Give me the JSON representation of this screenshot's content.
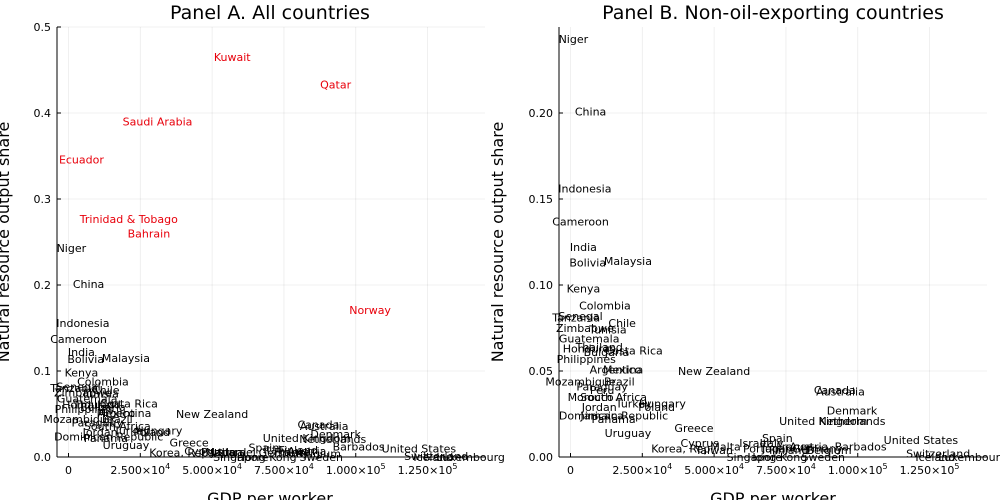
{
  "colors": {
    "oil": "#e8000b",
    "other": "#000000",
    "background": "#ffffff"
  },
  "chart_data": [
    {
      "type": "scatter",
      "title": "Panel A. All countries",
      "xlabel": "GDP per worker",
      "ylabel": "Natural resource output share",
      "xlim": [
        -4000,
        145000
      ],
      "ylim": [
        0,
        0.5
      ],
      "xticks": [
        0,
        25000,
        50000,
        75000,
        100000,
        125000
      ],
      "xtick_labels": [
        {
          "mantissa": "0",
          "exp": ""
        },
        {
          "mantissa": "2.500×10",
          "exp": "4"
        },
        {
          "mantissa": "5.000×10",
          "exp": "4"
        },
        {
          "mantissa": "7.500×10",
          "exp": "4"
        },
        {
          "mantissa": "1.000×10",
          "exp": "5"
        },
        {
          "mantissa": "1.250×10",
          "exp": "5"
        }
      ],
      "yticks": [
        0,
        0.1,
        0.2,
        0.3,
        0.4,
        0.5
      ],
      "ytick_labels": [
        "0.0",
        "0.1",
        "0.2",
        "0.3",
        "0.4",
        "0.5"
      ],
      "grid": true,
      "legend": "none",
      "points": [
        {
          "label": "Kuwait",
          "x": 57000,
          "y": 0.465,
          "group": "oil"
        },
        {
          "label": "Qatar",
          "x": 93000,
          "y": 0.433,
          "group": "oil"
        },
        {
          "label": "Saudi Arabia",
          "x": 31000,
          "y": 0.39,
          "group": "oil"
        },
        {
          "label": "Ecuador",
          "x": 4500,
          "y": 0.346,
          "group": "oil"
        },
        {
          "label": "Trinidad & Tobago",
          "x": 21000,
          "y": 0.277,
          "group": "oil"
        },
        {
          "label": "Bahrain",
          "x": 28000,
          "y": 0.26,
          "group": "oil"
        },
        {
          "label": "Norway",
          "x": 105000,
          "y": 0.171,
          "group": "oil"
        },
        {
          "label": "Niger",
          "x": 1000,
          "y": 0.243,
          "group": "other"
        },
        {
          "label": "China",
          "x": 7000,
          "y": 0.201,
          "group": "other"
        },
        {
          "label": "Indonesia",
          "x": 5000,
          "y": 0.156,
          "group": "other"
        },
        {
          "label": "Cameroon",
          "x": 3500,
          "y": 0.137,
          "group": "other"
        },
        {
          "label": "India",
          "x": 4500,
          "y": 0.122,
          "group": "other"
        },
        {
          "label": "Bolivia",
          "x": 6000,
          "y": 0.114,
          "group": "other"
        },
        {
          "label": "Malaysia",
          "x": 20000,
          "y": 0.115,
          "group": "other"
        },
        {
          "label": "Kenya",
          "x": 4500,
          "y": 0.098,
          "group": "other"
        },
        {
          "label": "Colombia",
          "x": 12000,
          "y": 0.088,
          "group": "other"
        },
        {
          "label": "Chile",
          "x": 13000,
          "y": 0.078,
          "group": "other"
        },
        {
          "label": "Senegal",
          "x": 3500,
          "y": 0.082,
          "group": "other"
        },
        {
          "label": "Tanzania",
          "x": 2000,
          "y": 0.08,
          "group": "other"
        },
        {
          "label": "Zimbabwe",
          "x": 5000,
          "y": 0.075,
          "group": "other"
        },
        {
          "label": "Tunisia",
          "x": 11000,
          "y": 0.074,
          "group": "other"
        },
        {
          "label": "Guatemala",
          "x": 6500,
          "y": 0.068,
          "group": "other"
        },
        {
          "label": "Honduras",
          "x": 7000,
          "y": 0.061,
          "group": "other"
        },
        {
          "label": "Costa Rica",
          "x": 21000,
          "y": 0.062,
          "group": "other"
        },
        {
          "label": "Thailand",
          "x": 10000,
          "y": 0.061,
          "group": "other"
        },
        {
          "label": "Bulgaria",
          "x": 12000,
          "y": 0.058,
          "group": "other"
        },
        {
          "label": "Philippines",
          "x": 5500,
          "y": 0.056,
          "group": "other"
        },
        {
          "label": "Mexico",
          "x": 16500,
          "y": 0.051,
          "group": "other"
        },
        {
          "label": "Argentina",
          "x": 19500,
          "y": 0.051,
          "group": "other"
        },
        {
          "label": "New Zealand",
          "x": 50000,
          "y": 0.05,
          "group": "other"
        },
        {
          "label": "Mozambique",
          "x": 3500,
          "y": 0.044,
          "group": "other"
        },
        {
          "label": "Brazil",
          "x": 17000,
          "y": 0.044,
          "group": "other"
        },
        {
          "label": "Paraguay",
          "x": 10000,
          "y": 0.04,
          "group": "other"
        },
        {
          "label": "South Africa",
          "x": 17000,
          "y": 0.036,
          "group": "other"
        },
        {
          "label": "Turkey",
          "x": 22000,
          "y": 0.031,
          "group": "other"
        },
        {
          "label": "Hungary",
          "x": 31500,
          "y": 0.031,
          "group": "other"
        },
        {
          "label": "Poland",
          "x": 29000,
          "y": 0.029,
          "group": "other"
        },
        {
          "label": "Jordan",
          "x": 11000,
          "y": 0.029,
          "group": "other"
        },
        {
          "label": "Dominican Republic",
          "x": 14000,
          "y": 0.024,
          "group": "other"
        },
        {
          "label": "Panama",
          "x": 13000,
          "y": 0.022,
          "group": "other"
        },
        {
          "label": "Uruguay",
          "x": 20000,
          "y": 0.014,
          "group": "other"
        },
        {
          "label": "Greece",
          "x": 42000,
          "y": 0.017,
          "group": "other"
        },
        {
          "label": "Korea, Rep.",
          "x": 39000,
          "y": 0.005,
          "group": "other"
        },
        {
          "label": "Cyprus",
          "x": 47000,
          "y": 0.007,
          "group": "other"
        },
        {
          "label": "Malta",
          "x": 53000,
          "y": 0.006,
          "group": "other"
        },
        {
          "label": "Israel",
          "x": 60000,
          "y": 0.006,
          "group": "other"
        },
        {
          "label": "Japan",
          "x": 55000,
          "y": 0.006,
          "group": "other"
        },
        {
          "label": "Portugal",
          "x": 54000,
          "y": 0.006,
          "group": "other"
        },
        {
          "label": "Spain",
          "x": 68000,
          "y": 0.011,
          "group": "other"
        },
        {
          "label": "Italy",
          "x": 72000,
          "y": 0.009,
          "group": "other"
        },
        {
          "label": "France",
          "x": 78000,
          "y": 0.006,
          "group": "other"
        },
        {
          "label": "Finland",
          "x": 80000,
          "y": 0.008,
          "group": "other"
        },
        {
          "label": "Austria",
          "x": 83000,
          "y": 0.007,
          "group": "other"
        },
        {
          "label": "Germany",
          "x": 75000,
          "y": 0.005,
          "group": "other"
        },
        {
          "label": "Singapore",
          "x": 60000,
          "y": 0.0,
          "group": "other"
        },
        {
          "label": "Hong Kong",
          "x": 69000,
          "y": 0.0,
          "group": "other"
        },
        {
          "label": "Sweden",
          "x": 88000,
          "y": 0.0,
          "group": "other"
        },
        {
          "label": "Belgium",
          "x": 87000,
          "y": 0.004,
          "group": "other"
        },
        {
          "label": "Barbados",
          "x": 101000,
          "y": 0.012,
          "group": "other"
        },
        {
          "label": "Canada",
          "x": 87000,
          "y": 0.038,
          "group": "other"
        },
        {
          "label": "Australia",
          "x": 89000,
          "y": 0.036,
          "group": "other"
        },
        {
          "label": "Denmark",
          "x": 93000,
          "y": 0.027,
          "group": "other"
        },
        {
          "label": "United Kingdom",
          "x": 83000,
          "y": 0.022,
          "group": "other"
        },
        {
          "label": "Netherlands",
          "x": 92000,
          "y": 0.021,
          "group": "other"
        },
        {
          "label": "United States",
          "x": 122000,
          "y": 0.01,
          "group": "other"
        },
        {
          "label": "Iceland",
          "x": 127000,
          "y": 0.0,
          "group": "other"
        },
        {
          "label": "Switzerland",
          "x": 128000,
          "y": 0.001,
          "group": "other"
        },
        {
          "label": "Luxembourg",
          "x": 140000,
          "y": 0.0,
          "group": "other"
        }
      ]
    },
    {
      "type": "scatter",
      "title": "Panel B. Non-oil-exporting countries",
      "xlabel": "GDP per worker",
      "ylabel": "Natural resource output share",
      "xlim": [
        -4000,
        145000
      ],
      "ylim": [
        0,
        0.25
      ],
      "xticks": [
        0,
        25000,
        50000,
        75000,
        100000,
        125000
      ],
      "xtick_labels": [
        {
          "mantissa": "0",
          "exp": ""
        },
        {
          "mantissa": "2.500×10",
          "exp": "4"
        },
        {
          "mantissa": "5.000×10",
          "exp": "4"
        },
        {
          "mantissa": "7.500×10",
          "exp": "4"
        },
        {
          "mantissa": "1.000×10",
          "exp": "5"
        },
        {
          "mantissa": "1.250×10",
          "exp": "5"
        }
      ],
      "yticks": [
        0,
        0.05,
        0.1,
        0.15,
        0.2
      ],
      "ytick_labels": [
        "0.00",
        "0.05",
        "0.10",
        "0.15",
        "0.20"
      ],
      "grid": true,
      "legend": "none",
      "points": [
        {
          "label": "Niger",
          "x": 1000,
          "y": 0.243,
          "group": "other"
        },
        {
          "label": "China",
          "x": 7000,
          "y": 0.201,
          "group": "other"
        },
        {
          "label": "Indonesia",
          "x": 5000,
          "y": 0.156,
          "group": "other"
        },
        {
          "label": "Cameroon",
          "x": 3500,
          "y": 0.137,
          "group": "other"
        },
        {
          "label": "India",
          "x": 4500,
          "y": 0.122,
          "group": "other"
        },
        {
          "label": "Bolivia",
          "x": 6000,
          "y": 0.113,
          "group": "other"
        },
        {
          "label": "Malaysia",
          "x": 20000,
          "y": 0.114,
          "group": "other"
        },
        {
          "label": "Kenya",
          "x": 4500,
          "y": 0.098,
          "group": "other"
        },
        {
          "label": "Colombia",
          "x": 12000,
          "y": 0.088,
          "group": "other"
        },
        {
          "label": "Senegal",
          "x": 3500,
          "y": 0.082,
          "group": "other"
        },
        {
          "label": "Tanzania",
          "x": 2000,
          "y": 0.081,
          "group": "other"
        },
        {
          "label": "Chile",
          "x": 18000,
          "y": 0.078,
          "group": "other"
        },
        {
          "label": "Zimbabwe",
          "x": 5000,
          "y": 0.075,
          "group": "other"
        },
        {
          "label": "Tunisia",
          "x": 13000,
          "y": 0.074,
          "group": "other"
        },
        {
          "label": "Guatemala",
          "x": 6500,
          "y": 0.069,
          "group": "other"
        },
        {
          "label": "Honduras",
          "x": 6500,
          "y": 0.063,
          "group": "other"
        },
        {
          "label": "Thailand",
          "x": 10000,
          "y": 0.064,
          "group": "other"
        },
        {
          "label": "Costa Rica",
          "x": 22000,
          "y": 0.062,
          "group": "other"
        },
        {
          "label": "Bulgaria",
          "x": 12500,
          "y": 0.061,
          "group": "other"
        },
        {
          "label": "Philippines",
          "x": 5500,
          "y": 0.057,
          "group": "other"
        },
        {
          "label": "Argentina",
          "x": 16000,
          "y": 0.051,
          "group": "other"
        },
        {
          "label": "Mexico",
          "x": 18000,
          "y": 0.051,
          "group": "other"
        },
        {
          "label": "New Zealand",
          "x": 50000,
          "y": 0.05,
          "group": "other"
        },
        {
          "label": "Mozambique",
          "x": 3500,
          "y": 0.044,
          "group": "other"
        },
        {
          "label": "Brazil",
          "x": 17000,
          "y": 0.044,
          "group": "other"
        },
        {
          "label": "Paraguay",
          "x": 11000,
          "y": 0.041,
          "group": "other"
        },
        {
          "label": "Peru",
          "x": 11000,
          "y": 0.039,
          "group": "other"
        },
        {
          "label": "Morocco",
          "x": 7000,
          "y": 0.035,
          "group": "other"
        },
        {
          "label": "South Africa",
          "x": 15000,
          "y": 0.035,
          "group": "other"
        },
        {
          "label": "Turkey",
          "x": 22000,
          "y": 0.031,
          "group": "other"
        },
        {
          "label": "Hungary",
          "x": 32000,
          "y": 0.031,
          "group": "other"
        },
        {
          "label": "Poland",
          "x": 30000,
          "y": 0.029,
          "group": "other"
        },
        {
          "label": "Jordan",
          "x": 10000,
          "y": 0.029,
          "group": "other"
        },
        {
          "label": "Dominican Republic",
          "x": 15000,
          "y": 0.024,
          "group": "other"
        },
        {
          "label": "Jamaica",
          "x": 11000,
          "y": 0.024,
          "group": "other"
        },
        {
          "label": "Panama",
          "x": 15000,
          "y": 0.022,
          "group": "other"
        },
        {
          "label": "Uruguay",
          "x": 20000,
          "y": 0.014,
          "group": "other"
        },
        {
          "label": "Greece",
          "x": 43000,
          "y": 0.017,
          "group": "other"
        },
        {
          "label": "Korea, Rep.",
          "x": 39000,
          "y": 0.005,
          "group": "other"
        },
        {
          "label": "Cyprus",
          "x": 45000,
          "y": 0.008,
          "group": "other"
        },
        {
          "label": "Taiwan",
          "x": 50000,
          "y": 0.004,
          "group": "other"
        },
        {
          "label": "Malta",
          "x": 54000,
          "y": 0.006,
          "group": "other"
        },
        {
          "label": "Israel",
          "x": 64000,
          "y": 0.008,
          "group": "other"
        },
        {
          "label": "Italy",
          "x": 70000,
          "y": 0.008,
          "group": "other"
        },
        {
          "label": "Spain",
          "x": 72000,
          "y": 0.011,
          "group": "other"
        },
        {
          "label": "Portugal",
          "x": 68000,
          "y": 0.005,
          "group": "other"
        },
        {
          "label": "Japan",
          "x": 72000,
          "y": 0.005,
          "group": "other"
        },
        {
          "label": "France",
          "x": 78000,
          "y": 0.006,
          "group": "other"
        },
        {
          "label": "Finland",
          "x": 76000,
          "y": 0.004,
          "group": "other"
        },
        {
          "label": "Austria",
          "x": 83000,
          "y": 0.006,
          "group": "other"
        },
        {
          "label": "Germany",
          "x": 86000,
          "y": 0.005,
          "group": "other"
        },
        {
          "label": "Belgium",
          "x": 90000,
          "y": 0.004,
          "group": "other"
        },
        {
          "label": "Singapore",
          "x": 64000,
          "y": 0.0,
          "group": "other"
        },
        {
          "label": "Hong Kong",
          "x": 72000,
          "y": 0.0,
          "group": "other"
        },
        {
          "label": "Sweden",
          "x": 88000,
          "y": 0.0,
          "group": "other"
        },
        {
          "label": "Barbados",
          "x": 101000,
          "y": 0.006,
          "group": "other"
        },
        {
          "label": "Canada",
          "x": 92000,
          "y": 0.039,
          "group": "other"
        },
        {
          "label": "Australia",
          "x": 94000,
          "y": 0.038,
          "group": "other"
        },
        {
          "label": "Denmark",
          "x": 98000,
          "y": 0.027,
          "group": "other"
        },
        {
          "label": "United Kingdom",
          "x": 88000,
          "y": 0.021,
          "group": "other"
        },
        {
          "label": "Netherlands",
          "x": 98000,
          "y": 0.021,
          "group": "other"
        },
        {
          "label": "United States",
          "x": 122000,
          "y": 0.01,
          "group": "other"
        },
        {
          "label": "Iceland",
          "x": 127000,
          "y": 0.0,
          "group": "other"
        },
        {
          "label": "Switzerland",
          "x": 128000,
          "y": 0.002,
          "group": "other"
        },
        {
          "label": "Luxembourg",
          "x": 140000,
          "y": 0.0,
          "group": "other"
        }
      ]
    }
  ]
}
